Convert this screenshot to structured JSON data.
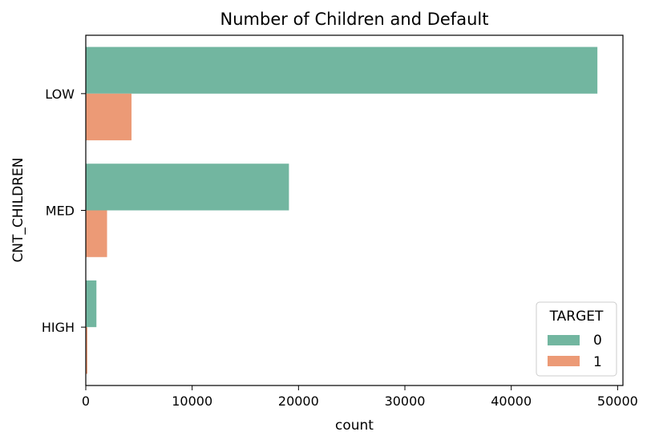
{
  "chart_data": {
    "type": "bar",
    "orientation": "horizontal",
    "title": "Number of Children and Default",
    "xlabel": "count",
    "ylabel": "CNT_CHILDREN",
    "categories": [
      "LOW",
      "MED",
      "HIGH"
    ],
    "xlim": [
      0,
      50500
    ],
    "xticks": [
      0,
      10000,
      20000,
      30000,
      40000,
      50000
    ],
    "xtick_labels": [
      "0",
      "10000",
      "20000",
      "30000",
      "40000",
      "50000"
    ],
    "grid": false,
    "legend": {
      "title": "TARGET",
      "position": "bottom-right"
    },
    "series": [
      {
        "name": "0",
        "color": "#72b6a0",
        "values": [
          48100,
          19100,
          1000
        ]
      },
      {
        "name": "1",
        "color": "#ec9a76",
        "values": [
          4300,
          2000,
          150
        ]
      }
    ]
  }
}
